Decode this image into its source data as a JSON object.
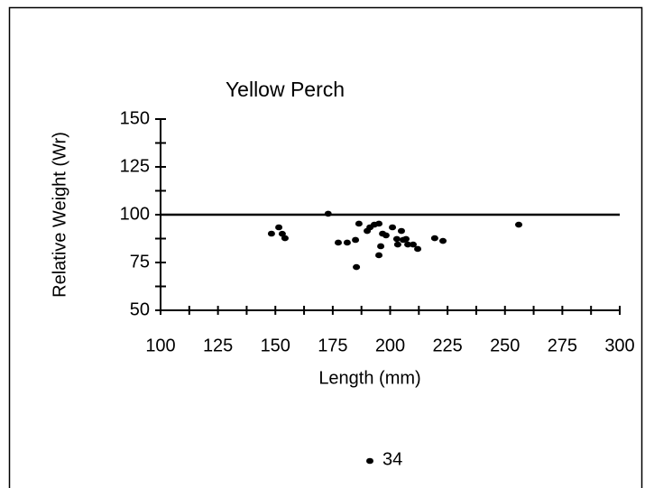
{
  "chart_data": {
    "type": "scatter",
    "title": "Yellow Perch",
    "x_label": "Length (mm)",
    "y_label": "Relative Weight (Wr)",
    "xlim": [
      100,
      300
    ],
    "xticks": [
      100,
      125,
      150,
      175,
      200,
      225,
      250,
      275,
      300
    ],
    "x_minor_ticks": [
      112.5,
      137.5,
      162.5,
      187.5,
      212.5,
      237.5,
      262.5,
      287.5
    ],
    "ylim": [
      50,
      150
    ],
    "yticks": [
      50,
      75,
      100,
      125,
      150
    ],
    "y_minor_ticks": [
      62.5,
      87.5,
      112.5,
      137.5
    ],
    "reference_line": 100,
    "legend": "bottom",
    "series": [
      {
        "name": "34",
        "color": "#000000",
        "x": [
          148.3,
          151.5,
          153,
          154.2,
          173,
          177.4,
          181.3,
          184.9,
          185.3,
          186.4,
          190,
          191.2,
          193.1,
          195.1,
          195.1,
          195.9,
          196.7,
          198.2,
          201,
          202.9,
          203.3,
          204.9,
          205.7,
          206.9,
          207.7,
          210,
          212,
          219.4,
          223,
          256
        ],
        "values": [
          90.1,
          93.4,
          90,
          87.7,
          100.5,
          85.4,
          85.4,
          86.8,
          72.6,
          95.3,
          91.5,
          93.4,
          94.8,
          95.3,
          78.8,
          83.5,
          90.1,
          89.2,
          93.4,
          87.3,
          84.4,
          91.5,
          86.8,
          87.3,
          84.4,
          84.4,
          82.1,
          87.7,
          86.3,
          94.8
        ]
      }
    ]
  }
}
